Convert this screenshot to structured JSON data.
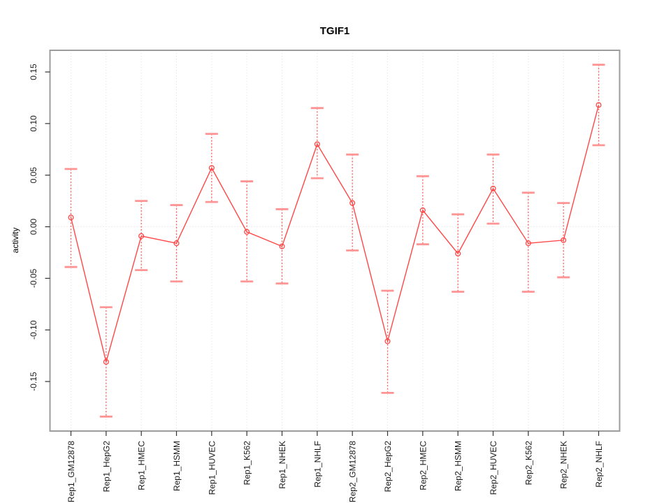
{
  "chart_data": {
    "type": "line",
    "title": "TGIF1",
    "xlabel": "",
    "ylabel": "activity",
    "legend": null,
    "grid": "vertical-dotted-per-category-plus-dotted-zero-line",
    "marker": "open-circle",
    "categories": [
      "Rep1_GM12878",
      "Rep1_HepG2",
      "Rep1_HMEC",
      "Rep1_HSMM",
      "Rep1_HUVEC",
      "Rep1_K562",
      "Rep1_NHEK",
      "Rep1_NHLF",
      "Rep2_GM12878",
      "Rep2_HepG2",
      "Rep2_HMEC",
      "Rep2_HSMM",
      "Rep2_HUVEC",
      "Rep2_K562",
      "Rep2_NHEK",
      "Rep2_NHLF"
    ],
    "series": [
      {
        "name": "activity",
        "values": [
          0.009,
          -0.131,
          -0.009,
          -0.016,
          0.057,
          -0.005,
          -0.019,
          0.08,
          0.023,
          -0.111,
          0.016,
          -0.026,
          0.037,
          -0.016,
          -0.013,
          0.118
        ],
        "error_low": [
          -0.039,
          -0.184,
          -0.042,
          -0.053,
          0.024,
          -0.053,
          -0.055,
          0.047,
          -0.023,
          -0.161,
          -0.017,
          -0.063,
          0.003,
          -0.063,
          -0.049,
          0.079
        ],
        "error_high": [
          0.056,
          -0.078,
          0.025,
          0.021,
          0.09,
          0.044,
          0.017,
          0.115,
          0.07,
          -0.062,
          0.049,
          0.012,
          0.07,
          0.033,
          0.023,
          0.157
        ]
      }
    ],
    "yticks": [
      0.15,
      0.1,
      0.05,
      0.0,
      -0.05,
      -0.1,
      -0.15
    ],
    "ytick_labels": [
      "0.15",
      "0.10",
      "0.05",
      "0.00",
      "-0.05",
      "-0.10",
      "-0.15"
    ],
    "ylim": [
      -0.198,
      0.171
    ],
    "zero_line": 0.0,
    "colors": {
      "line": "#ff4747",
      "point": "#ff4747",
      "error_line": "#ff5c5c",
      "error_cap": "#ff9494",
      "grid": "#dedede",
      "border": "#9c9c9c",
      "tick": "#333333",
      "text": "#1a1a1a",
      "background": "#ffffff"
    }
  }
}
